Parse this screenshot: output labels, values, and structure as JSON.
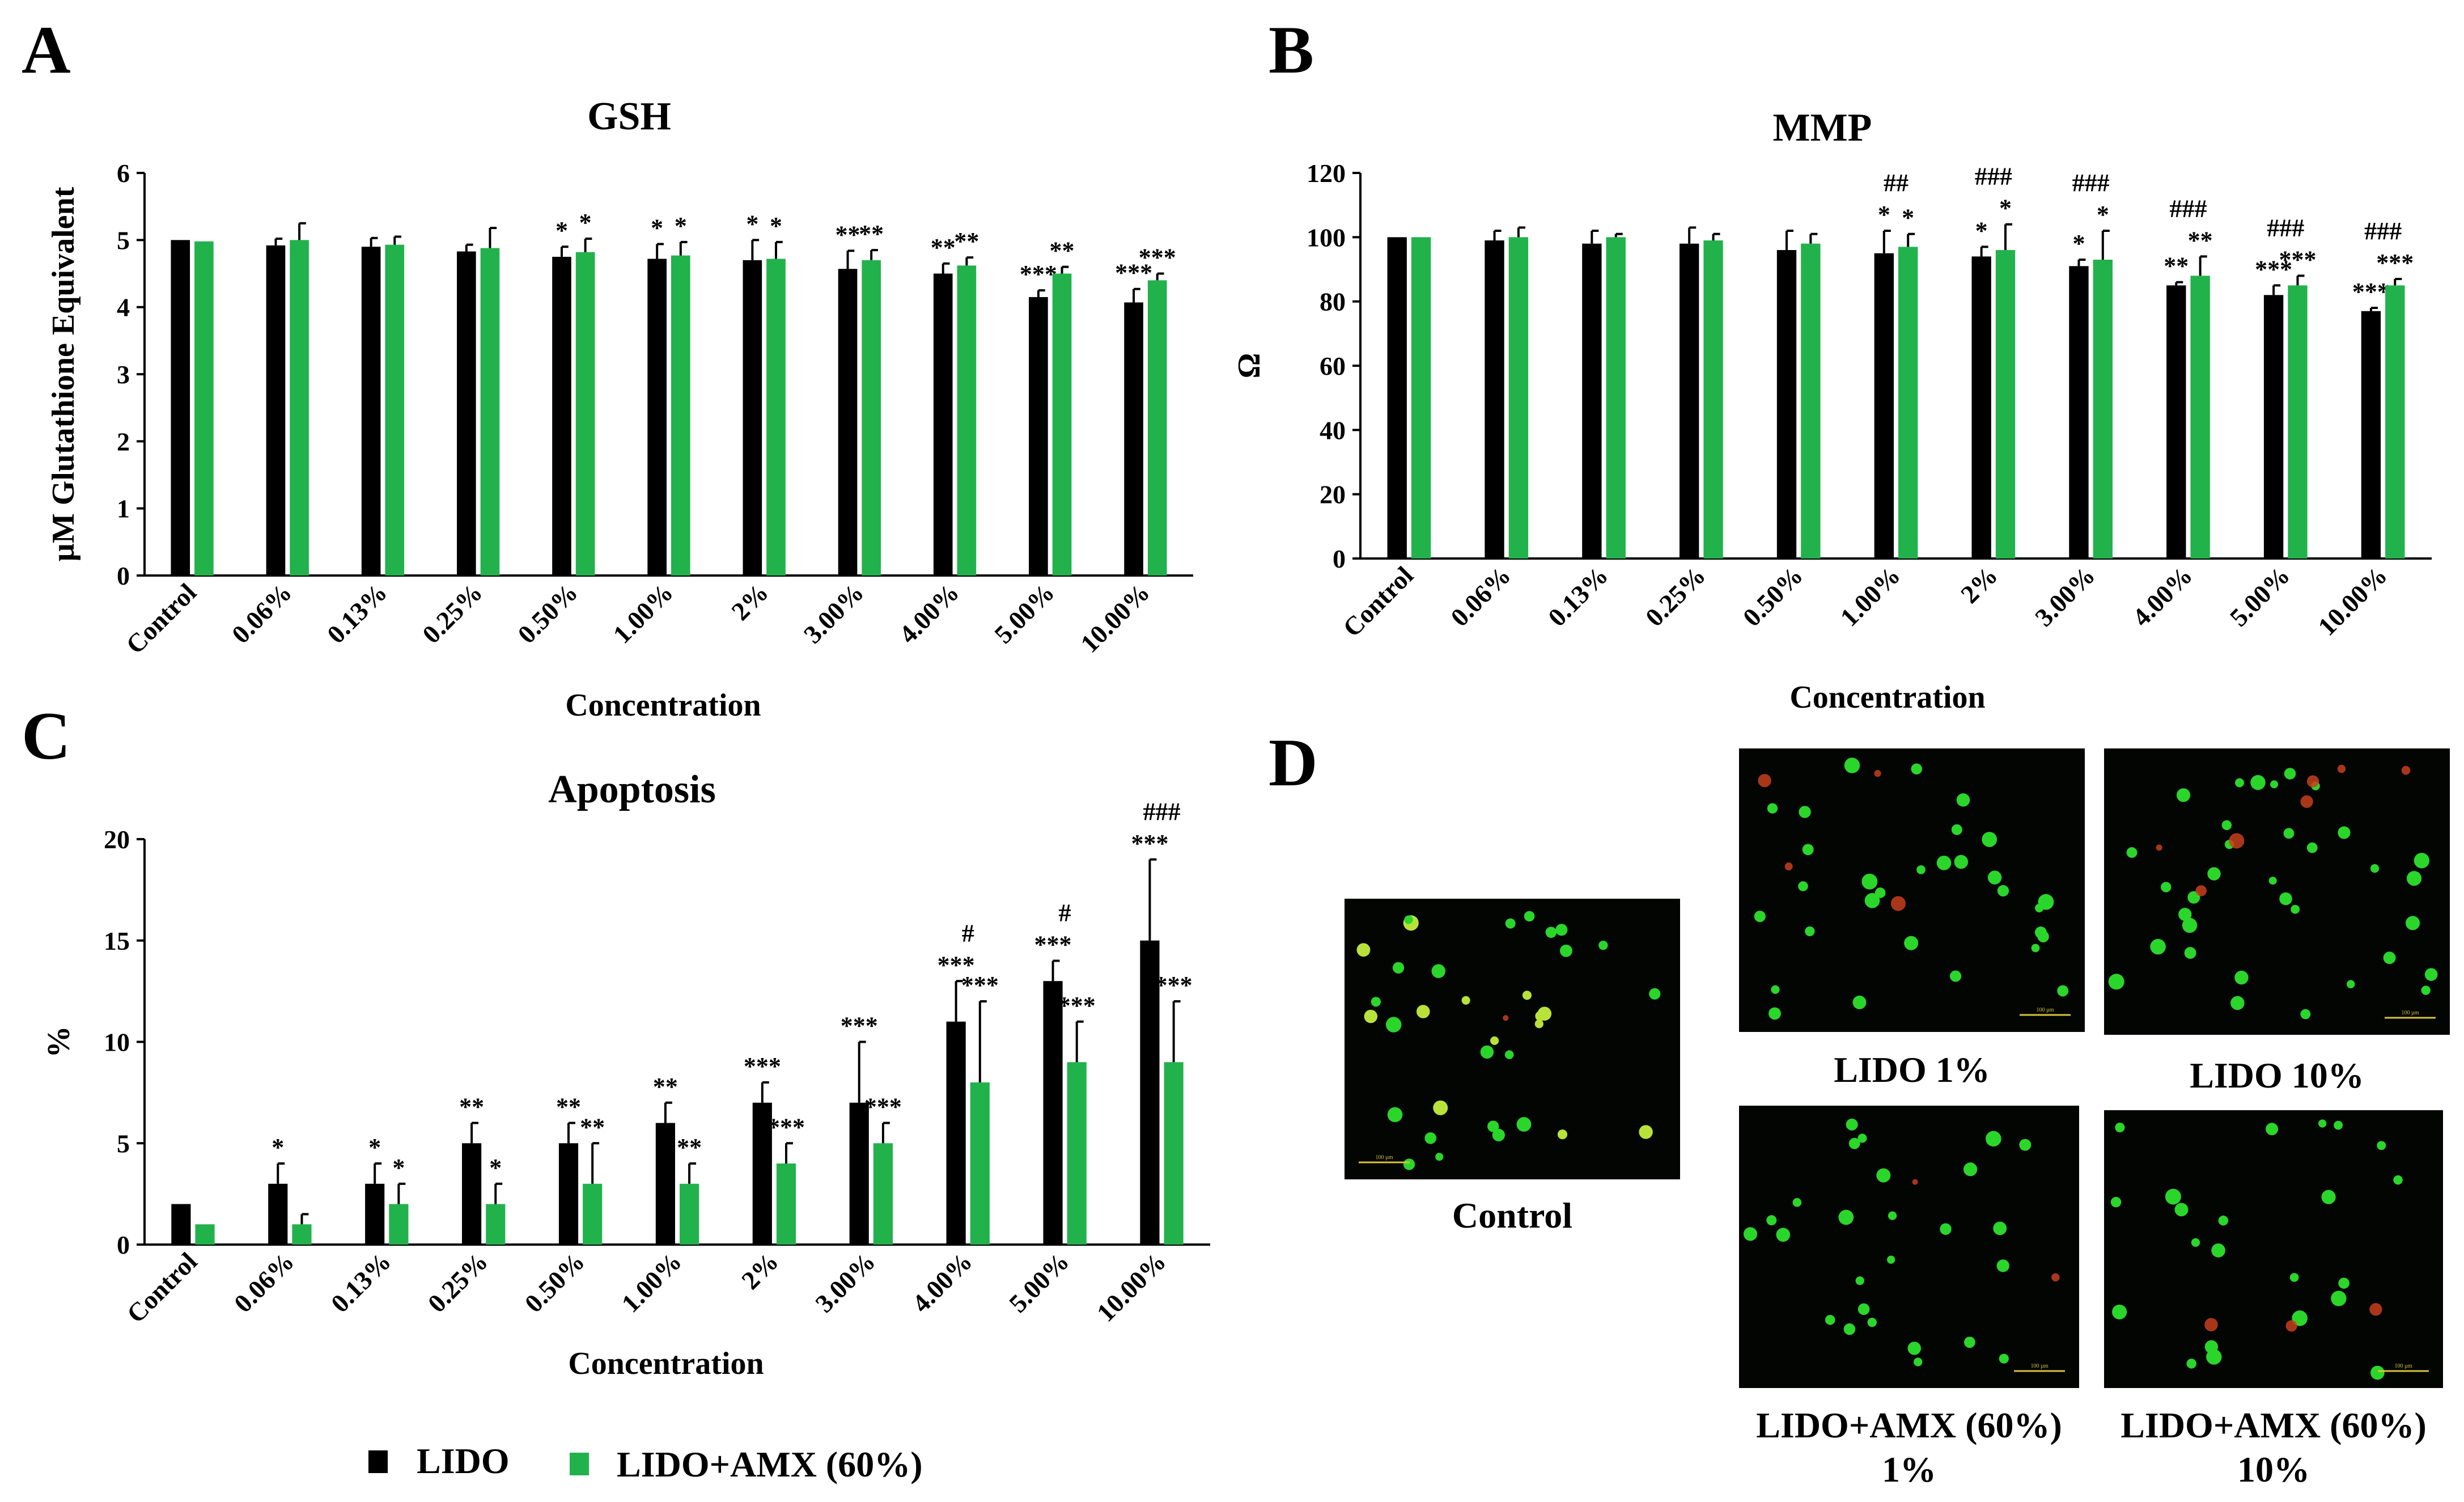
{
  "panels": {
    "A": "A",
    "B": "B",
    "C": "C",
    "D": "D"
  },
  "legend": {
    "items": [
      {
        "label": "LIDO",
        "color": "#000000"
      },
      {
        "label": "LIDO+AMX (60%)",
        "color": "#22b24c"
      }
    ]
  },
  "colors": {
    "lido": "#000000",
    "lidoamx": "#22b24c",
    "micro_bg": "#020502",
    "cell_green": "#2bd62b",
    "cell_red": "#c8401e"
  },
  "chart_data": [
    {
      "id": "gsh",
      "type": "bar",
      "title": "GSH",
      "xlabel": "Concentration",
      "ylabel": "µM Glutathione Equivalent",
      "ylim": [
        0,
        6
      ],
      "yticks": [
        0,
        1,
        2,
        3,
        4,
        5,
        6
      ],
      "categories": [
        "Control",
        "0.06%",
        "0.13%",
        "0.25%",
        "0.50%",
        "1.00%",
        "2%",
        "3.00%",
        "4.00%",
        "5.00%",
        "10.00%"
      ],
      "series": [
        {
          "name": "LIDO",
          "values": [
            5.0,
            4.92,
            4.9,
            4.83,
            4.75,
            4.72,
            4.7,
            4.57,
            4.5,
            4.15,
            4.07
          ],
          "errors": [
            0.0,
            0.1,
            0.13,
            0.1,
            0.15,
            0.22,
            0.3,
            0.27,
            0.15,
            0.1,
            0.2
          ],
          "annotations": [
            "",
            "",
            "",
            "",
            "*",
            "*",
            "*",
            "**",
            "**",
            "***",
            "***"
          ]
        },
        {
          "name": "LIDO+AMX (60%)",
          "values": [
            4.98,
            5.0,
            4.93,
            4.88,
            4.82,
            4.77,
            4.72,
            4.7,
            4.62,
            4.5,
            4.4
          ],
          "errors": [
            0.0,
            0.25,
            0.12,
            0.3,
            0.2,
            0.2,
            0.25,
            0.15,
            0.12,
            0.1,
            0.1
          ],
          "annotations": [
            "",
            "",
            "",
            "",
            "*",
            "*",
            "*",
            "**",
            "**",
            "**",
            "***"
          ]
        }
      ]
    },
    {
      "id": "mmp",
      "type": "bar",
      "title": "MMP",
      "xlabel": "Concentration",
      "ylabel": "Ω",
      "ylim": [
        0,
        120
      ],
      "yticks": [
        0,
        20,
        40,
        60,
        80,
        100,
        120
      ],
      "categories": [
        "Control",
        "0.06%",
        "0.13%",
        "0.25%",
        "0.50%",
        "1.00%",
        "2%",
        "3.00%",
        "4.00%",
        "5.00%",
        "10.00%"
      ],
      "series": [
        {
          "name": "LIDO",
          "values": [
            100,
            99,
            98,
            98,
            96,
            95,
            94,
            91,
            85,
            82,
            77
          ],
          "errors": [
            0,
            3,
            4,
            5,
            6,
            7,
            3,
            2,
            1,
            3,
            1
          ],
          "annotations": [
            "",
            "",
            "",
            "",
            "",
            "*",
            "*",
            "*",
            "**",
            "***",
            "***"
          ]
        },
        {
          "name": "LIDO+AMX (60%)",
          "values": [
            100,
            100,
            100,
            99,
            98,
            97,
            96,
            93,
            88,
            85,
            85
          ],
          "errors": [
            0,
            3,
            1,
            2,
            3,
            4,
            8,
            9,
            6,
            3,
            2
          ],
          "annotations": [
            "",
            "",
            "",
            "",
            "",
            "*",
            "*",
            "*",
            "**",
            "***",
            "***"
          ]
        }
      ],
      "group_annotations": [
        "",
        "",
        "",
        "",
        "",
        "##",
        "###",
        "###",
        "###",
        "###",
        "###"
      ]
    },
    {
      "id": "apoptosis",
      "type": "bar",
      "title": "Apoptosis",
      "xlabel": "Concentration",
      "ylabel": "%",
      "ylim": [
        0,
        20
      ],
      "yticks": [
        0,
        5,
        10,
        15,
        20
      ],
      "categories": [
        "Control",
        "0.06%",
        "0.13%",
        "0.25%",
        "0.50%",
        "1.00%",
        "2%",
        "3.00%",
        "4.00%",
        "5.00%",
        "10.00%"
      ],
      "series": [
        {
          "name": "LIDO",
          "values": [
            2,
            3,
            3,
            5,
            5,
            6,
            7,
            7,
            11,
            13,
            15
          ],
          "errors": [
            0,
            1,
            1,
            1,
            1,
            1,
            1,
            3,
            2,
            1,
            4
          ],
          "annotations": [
            "",
            "*",
            "*",
            "**",
            "**",
            "**",
            "***",
            "***",
            "***",
            "***",
            "***"
          ]
        },
        {
          "name": "LIDO+AMX (60%)",
          "values": [
            1,
            1,
            2,
            2,
            3,
            3,
            4,
            5,
            8,
            9,
            9
          ],
          "errors": [
            0,
            0.5,
            1,
            1,
            2,
            1,
            1,
            1,
            4,
            2,
            3
          ],
          "annotations": [
            "",
            "",
            "*",
            "*",
            "**",
            "**",
            "***",
            "***",
            "***",
            "***",
            "***"
          ]
        }
      ],
      "group_annotations": [
        "",
        "",
        "",
        "",
        "",
        "",
        "",
        "",
        "#",
        "#",
        "###"
      ]
    }
  ],
  "micrographs": [
    {
      "id": "control",
      "caption_lines": [
        "Control"
      ]
    },
    {
      "id": "lido1",
      "caption_lines": [
        "LIDO 1%"
      ]
    },
    {
      "id": "lido10",
      "caption_lines": [
        "LIDO 10%"
      ]
    },
    {
      "id": "amx1",
      "caption_lines": [
        "LIDO+AMX (60%)",
        "1%"
      ]
    },
    {
      "id": "amx10",
      "caption_lines": [
        "LIDO+AMX (60%)",
        "10%"
      ]
    }
  ],
  "scale_bar_text": "100 µm"
}
